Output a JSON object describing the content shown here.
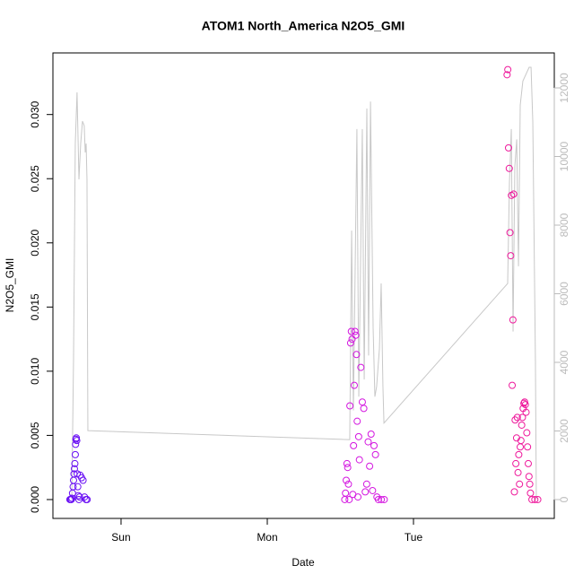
{
  "chart_data": {
    "type": "scatter",
    "title": "ATOM1 North_America N2O5_GMI",
    "xlabel": "Date",
    "ylabel": "N2O5_GMI",
    "xlim": [
      -0.466,
      2.963
    ],
    "xticks": [
      {
        "value": 0,
        "label": "Sun"
      },
      {
        "value": 1,
        "label": "Mon"
      },
      {
        "value": 2,
        "label": "Tue"
      }
    ],
    "ylim": [
      -0.00147,
      0.0348
    ],
    "yticks": [
      {
        "value": 0,
        "label": "0.000"
      },
      0.005,
      {
        "value": 0.01,
        "label": "0.010"
      },
      0.015,
      {
        "value": 0.02,
        "label": "0.020"
      },
      0.025,
      {
        "value": 0.03,
        "label": "0.030"
      }
    ],
    "y2lim": [
      -549,
      13020
    ],
    "y2ticks": [
      0,
      2000,
      4000,
      6000,
      8000,
      10000,
      12000
    ],
    "series": [
      {
        "type": "line",
        "axis": "y2",
        "color": "#c8c8c8",
        "x": [
          -0.337,
          -0.325,
          -0.313,
          -0.301,
          -0.288,
          -0.276,
          -0.264,
          -0.252,
          -0.245,
          -0.239,
          -0.233,
          -0.227,
          1.552,
          1.564,
          1.577,
          1.589,
          1.613,
          1.626,
          1.65,
          1.663,
          1.681,
          1.693,
          1.706,
          1.724,
          1.736,
          1.748,
          1.767,
          1.779,
          1.791,
          1.798,
          2.644,
          2.656,
          2.669,
          2.681,
          2.693,
          2.706,
          2.718,
          2.73,
          2.748,
          2.791,
          2.804,
          2.816,
          2.834,
          2.84
        ],
        "values": [
          0,
          4105,
          10380,
          11870,
          9333,
          10380,
          11030,
          10900,
          10120,
          10380,
          9330,
          2010,
          1750,
          1750,
          7840,
          2600,
          10800,
          3000,
          10800,
          3500,
          11400,
          4200,
          11600,
          5000,
          3000,
          3300,
          4400,
          6300,
          3300,
          2230,
          6300,
          9200,
          10800,
          4900,
          9700,
          10500,
          6800,
          11500,
          12200,
          12600,
          12600,
          11000,
          4000,
          0
        ]
      },
      {
        "type": "scatter",
        "color": "#6a10f4",
        "x": [
          -0.35,
          -0.345,
          -0.34,
          -0.336,
          -0.332,
          -0.328,
          -0.325,
          -0.322,
          -0.319,
          -0.316,
          -0.313,
          -0.311,
          -0.309,
          -0.306,
          -0.303,
          -0.3,
          -0.296,
          -0.292,
          -0.288,
          -0.284,
          -0.28,
          -0.27,
          -0.26,
          -0.25,
          -0.24,
          -0.232
        ],
        "values": [
          0,
          0,
          0,
          0.0001,
          0.0005,
          0.001,
          0.0015,
          0.002,
          0.0024,
          0.0028,
          0.0035,
          0.0043,
          0.0047,
          0.0048,
          0.0046,
          0.002,
          0.001,
          0.0003,
          0,
          0.0002,
          0.0019,
          0.0017,
          0.0015,
          0.0002,
          0,
          0
        ]
      },
      {
        "type": "scatter",
        "color": "#d418e0",
        "x": [
          1.53,
          1.535,
          1.54,
          1.545,
          1.55,
          1.555,
          1.56,
          1.565,
          1.57,
          1.575,
          1.58,
          1.585,
          1.59,
          1.595,
          1.6,
          1.605,
          1.61,
          1.615,
          1.62,
          1.625,
          1.63,
          1.64,
          1.65,
          1.66,
          1.67,
          1.68,
          1.69,
          1.7,
          1.71,
          1.72,
          1.73,
          1.74,
          1.75,
          1.76,
          1.78,
          1.8
        ],
        "values": [
          0,
          0.0005,
          0.0015,
          0.0028,
          0.0025,
          0.0012,
          0,
          0.0073,
          0.0122,
          0.0131,
          0.0125,
          0.0004,
          0.0042,
          0.0089,
          0.0131,
          0.0128,
          0.0113,
          0.0061,
          0.0002,
          0.0049,
          0.0031,
          0.0103,
          0.0076,
          0.0071,
          0.0006,
          0.0012,
          0.0045,
          0.0026,
          0.0051,
          0.0007,
          0.0042,
          0.0035,
          0.0002,
          0,
          0,
          0
        ]
      },
      {
        "type": "scatter",
        "color": "#ee1a9c",
        "x": [
          2.64,
          2.645,
          2.65,
          2.655,
          2.66,
          2.665,
          2.67,
          2.675,
          2.68,
          2.685,
          2.69,
          2.695,
          2.7,
          2.705,
          2.71,
          2.715,
          2.72,
          2.725,
          2.73,
          2.735,
          2.74,
          2.745,
          2.75,
          2.755,
          2.76,
          2.765,
          2.77,
          2.775,
          2.78,
          2.785,
          2.79,
          2.795,
          2.8,
          2.81,
          2.83,
          2.85
        ],
        "values": [
          0.0331,
          0.0335,
          0.0274,
          0.0258,
          0.0208,
          0.019,
          0.0237,
          0.0089,
          0.014,
          0.0238,
          0.0006,
          0.0062,
          0.0028,
          0.0048,
          0.0064,
          0.0021,
          0.0035,
          0.0012,
          0.0041,
          0.0046,
          0.0058,
          0.0064,
          0.0071,
          0.0075,
          0.0076,
          0.0074,
          0.0068,
          0.0052,
          0.0041,
          0.0028,
          0.0018,
          0.0012,
          0.0005,
          0,
          0,
          0
        ]
      }
    ]
  }
}
